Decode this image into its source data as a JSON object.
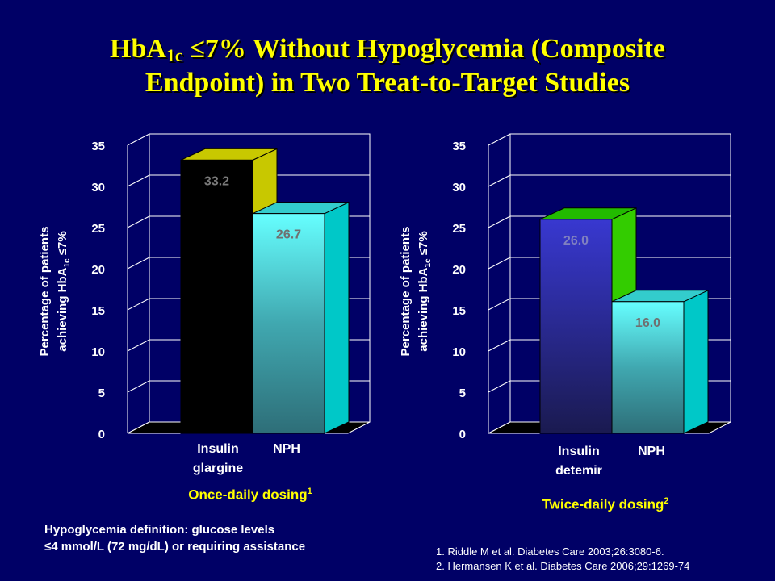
{
  "title": {
    "line1_a": "HbA",
    "line1_sub": "1c",
    "line1_b": " ≤7% Without Hypoglycemia (Composite",
    "line2": "Endpoint) in Two Treat-to-Target Studies"
  },
  "chart_data": [
    {
      "type": "bar",
      "categories": [
        "Insulin glargine",
        "NPH"
      ],
      "values": [
        33.2,
        26.7
      ],
      "data_labels": [
        "33.2",
        "26.7"
      ],
      "ylabel": "Percentage of patients achieving HbA1c ≤7%",
      "ylim": [
        0,
        35
      ],
      "yticks": [
        0,
        5,
        10,
        15,
        20,
        25,
        30,
        35
      ],
      "grid": true,
      "colors": {
        "front": [
          "#000000",
          "#33C8C8"
        ],
        "side": [
          "#C8C800",
          "#00C8C8"
        ],
        "top": [
          "#C8C800",
          "#33CCCC"
        ]
      },
      "caption": "Once-daily dosing",
      "caption_sup": "1"
    },
    {
      "type": "bar",
      "categories": [
        "Insulin detemir",
        "NPH"
      ],
      "values": [
        26.0,
        16.0
      ],
      "data_labels": [
        "26.0",
        "16.0"
      ],
      "ylabel": "Percentage of patients achieving HbA1c ≤7%",
      "ylim": [
        0,
        35
      ],
      "yticks": [
        0,
        5,
        10,
        15,
        20,
        25,
        30,
        35
      ],
      "grid": true,
      "colors": {
        "front": [
          "#3333CC",
          "#33C8C8"
        ],
        "side": [
          "#33CC00",
          "#00C8C8"
        ],
        "top": [
          "#22BB00",
          "#33CCCC"
        ]
      },
      "caption": "Twice-daily dosing",
      "caption_sup": "2"
    }
  ],
  "labels": {
    "ylabel_line1": "Percentage of patients",
    "ylabel_line2_a": "achieving HbA",
    "ylabel_line2_sub": "1c",
    "ylabel_line2_b": " ≤7%",
    "cat1_line1": "Insulin",
    "cat1_line2": "glargine",
    "cat2": "NPH",
    "cat3_line1": "Insulin",
    "cat3_line2": "detemir",
    "cat4": "NPH"
  },
  "footnote": {
    "line1": "Hypoglycemia definition: glucose levels",
    "line2": "≤4 mmol/L (72 mg/dL) or requiring assistance"
  },
  "references": [
    "1.  Riddle M et al. Diabetes Care 2003;26:3080-6.",
    "2.  Hermansen K et al. Diabetes Care 2006;29:1269-74"
  ]
}
